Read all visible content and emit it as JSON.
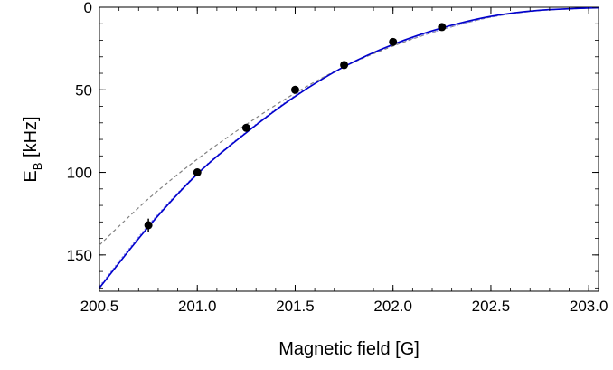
{
  "chart_data": {
    "type": "scatter",
    "xlabel": "Magnetic field [G]",
    "ylabel": {
      "main": "E",
      "sub": "B",
      "unit": " [kHz]"
    },
    "xlim": [
      200.5,
      203.05
    ],
    "ylim": [
      0,
      172
    ],
    "y_inverted": true,
    "x_ticks": [
      "200.5",
      "201.0",
      "201.5",
      "202.0",
      "202.5",
      "203.0"
    ],
    "y_ticks": [
      "0",
      "50",
      "100",
      "150"
    ],
    "grid": false,
    "legend": "none",
    "series": [
      {
        "kind": "points-with-error",
        "color": "#000000",
        "x": [
          200.75,
          201.0,
          201.25,
          201.5,
          201.75,
          202.0,
          202.25
        ],
        "y": [
          132,
          100,
          73,
          50,
          35,
          21,
          12
        ],
        "err": [
          4,
          2,
          1.5,
          1.5,
          1,
          1,
          1
        ]
      },
      {
        "kind": "line",
        "style": "solid",
        "color": "#0000cc",
        "x": [
          200.5,
          200.75,
          201.0,
          201.25,
          201.5,
          201.75,
          202.0,
          202.25,
          202.5,
          202.75,
          203.05
        ],
        "y": [
          170,
          133,
          101,
          76,
          54,
          36,
          22.5,
          12.5,
          5.5,
          1.8,
          0.3
        ]
      },
      {
        "kind": "line",
        "style": "dotted",
        "color": "#8888ee",
        "x": [
          200.5,
          200.75,
          201.0,
          201.25,
          201.5,
          201.75,
          202.0,
          202.25,
          202.5,
          202.75,
          203.05
        ],
        "y": [
          169,
          132,
          100.5,
          75.5,
          53.5,
          36,
          23,
          13.5,
          6,
          2,
          0.3
        ]
      },
      {
        "kind": "line",
        "style": "dashed",
        "color": "#808080",
        "x": [
          200.5,
          200.75,
          201.0,
          201.25,
          201.5,
          201.75,
          202.0,
          202.25,
          202.5,
          202.75,
          203.05
        ],
        "y": [
          144,
          116,
          92,
          71,
          52,
          36,
          23.5,
          13.5,
          6,
          2,
          0.3
        ]
      }
    ]
  }
}
